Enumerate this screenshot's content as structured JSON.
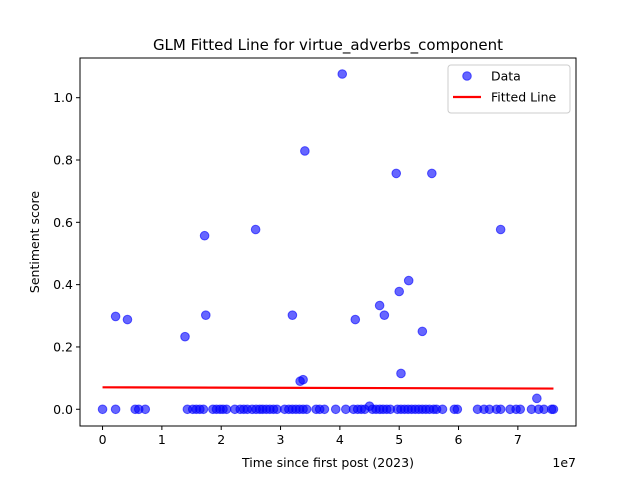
{
  "chart_data": {
    "type": "scatter",
    "title": "GLM Fitted Line for virtue_adverbs_component",
    "xlabel": "Time since first post (2023)",
    "ylabel": "Sentiment score",
    "x_offset_label": "1e7",
    "xlim": [
      -3800000,
      79800000
    ],
    "ylim": [
      -0.0537,
      1.1274
    ],
    "x_ticks": [
      0,
      10000000,
      20000000,
      30000000,
      40000000,
      50000000,
      60000000,
      70000000
    ],
    "x_tick_labels": [
      "0",
      "1",
      "2",
      "3",
      "4",
      "5",
      "6",
      "7"
    ],
    "y_ticks": [
      0.0,
      0.2,
      0.4,
      0.6,
      0.8,
      1.0
    ],
    "y_tick_labels": [
      "0.0",
      "0.2",
      "0.4",
      "0.6",
      "0.8",
      "1.0"
    ],
    "grid": false,
    "legend_position": "top-right",
    "colors": {
      "data": "#0000ff",
      "fit": "#ff0000"
    },
    "series": [
      {
        "name": "Data",
        "kind": "scatter",
        "points": [
          [
            0,
            0.0
          ],
          [
            2200000,
            0.0
          ],
          [
            5500000,
            0.0
          ],
          [
            6100000,
            0.0
          ],
          [
            7200000,
            0.0
          ],
          [
            14300000,
            0.0
          ],
          [
            15200000,
            0.0
          ],
          [
            15800000,
            0.0
          ],
          [
            16400000,
            0.0
          ],
          [
            17000000,
            0.0
          ],
          [
            18600000,
            0.0
          ],
          [
            19200000,
            0.0
          ],
          [
            19800000,
            0.0
          ],
          [
            20300000,
            0.0
          ],
          [
            20900000,
            0.0
          ],
          [
            22300000,
            0.0
          ],
          [
            23200000,
            0.0
          ],
          [
            23800000,
            0.0
          ],
          [
            24400000,
            0.0
          ],
          [
            25200000,
            0.0
          ],
          [
            25900000,
            0.0
          ],
          [
            26500000,
            0.0
          ],
          [
            27000000,
            0.0
          ],
          [
            27600000,
            0.0
          ],
          [
            28200000,
            0.0
          ],
          [
            28800000,
            0.0
          ],
          [
            29400000,
            0.0
          ],
          [
            30700000,
            0.0
          ],
          [
            31400000,
            0.0
          ],
          [
            32000000,
            0.0
          ],
          [
            32600000,
            0.0
          ],
          [
            33200000,
            0.0
          ],
          [
            33800000,
            0.0
          ],
          [
            34400000,
            0.0
          ],
          [
            36000000,
            0.0
          ],
          [
            36600000,
            0.0
          ],
          [
            37400000,
            0.0
          ],
          [
            39300000,
            0.0
          ],
          [
            41000000,
            0.0
          ],
          [
            42300000,
            0.0
          ],
          [
            43000000,
            0.0
          ],
          [
            43600000,
            0.0
          ],
          [
            44200000,
            0.0
          ],
          [
            45500000,
            0.0
          ],
          [
            46100000,
            0.0
          ],
          [
            46700000,
            0.0
          ],
          [
            47300000,
            0.0
          ],
          [
            47900000,
            0.0
          ],
          [
            48500000,
            0.0
          ],
          [
            49700000,
            0.0
          ],
          [
            50300000,
            0.0
          ],
          [
            50900000,
            0.0
          ],
          [
            51500000,
            0.0
          ],
          [
            52100000,
            0.0
          ],
          [
            52700000,
            0.0
          ],
          [
            53300000,
            0.0
          ],
          [
            53900000,
            0.0
          ],
          [
            54500000,
            0.0
          ],
          [
            55100000,
            0.0
          ],
          [
            55800000,
            0.0
          ],
          [
            56300000,
            0.0
          ],
          [
            57300000,
            0.0
          ],
          [
            59300000,
            0.0
          ],
          [
            59800000,
            0.0
          ],
          [
            63200000,
            0.0
          ],
          [
            64300000,
            0.0
          ],
          [
            65200000,
            0.0
          ],
          [
            66400000,
            0.0
          ],
          [
            67100000,
            0.0
          ],
          [
            68700000,
            0.0
          ],
          [
            69700000,
            0.0
          ],
          [
            70400000,
            0.0
          ],
          [
            72300000,
            0.0
          ],
          [
            73500000,
            0.0
          ],
          [
            74400000,
            0.0
          ],
          [
            75700000,
            0.0
          ],
          [
            76000000,
            0.0
          ],
          [
            45000000,
            0.01
          ],
          [
            33800000,
            0.095
          ],
          [
            33300000,
            0.09
          ],
          [
            73200000,
            0.035
          ],
          [
            50300000,
            0.115
          ],
          [
            2200000,
            0.298
          ],
          [
            4200000,
            0.288
          ],
          [
            13900000,
            0.233
          ],
          [
            17400000,
            0.302
          ],
          [
            17200000,
            0.557
          ],
          [
            25800000,
            0.577
          ],
          [
            32000000,
            0.302
          ],
          [
            34100000,
            0.829
          ],
          [
            40400000,
            1.076
          ],
          [
            42600000,
            0.288
          ],
          [
            46700000,
            0.333
          ],
          [
            47500000,
            0.302
          ],
          [
            49500000,
            0.757
          ],
          [
            50000000,
            0.378
          ],
          [
            51600000,
            0.413
          ],
          [
            53900000,
            0.25
          ],
          [
            55500000,
            0.757
          ],
          [
            67100000,
            0.577
          ]
        ]
      },
      {
        "name": "Fitted Line",
        "kind": "line",
        "points": [
          [
            0,
            0.0705
          ],
          [
            76000000,
            0.0665
          ]
        ]
      }
    ]
  }
}
